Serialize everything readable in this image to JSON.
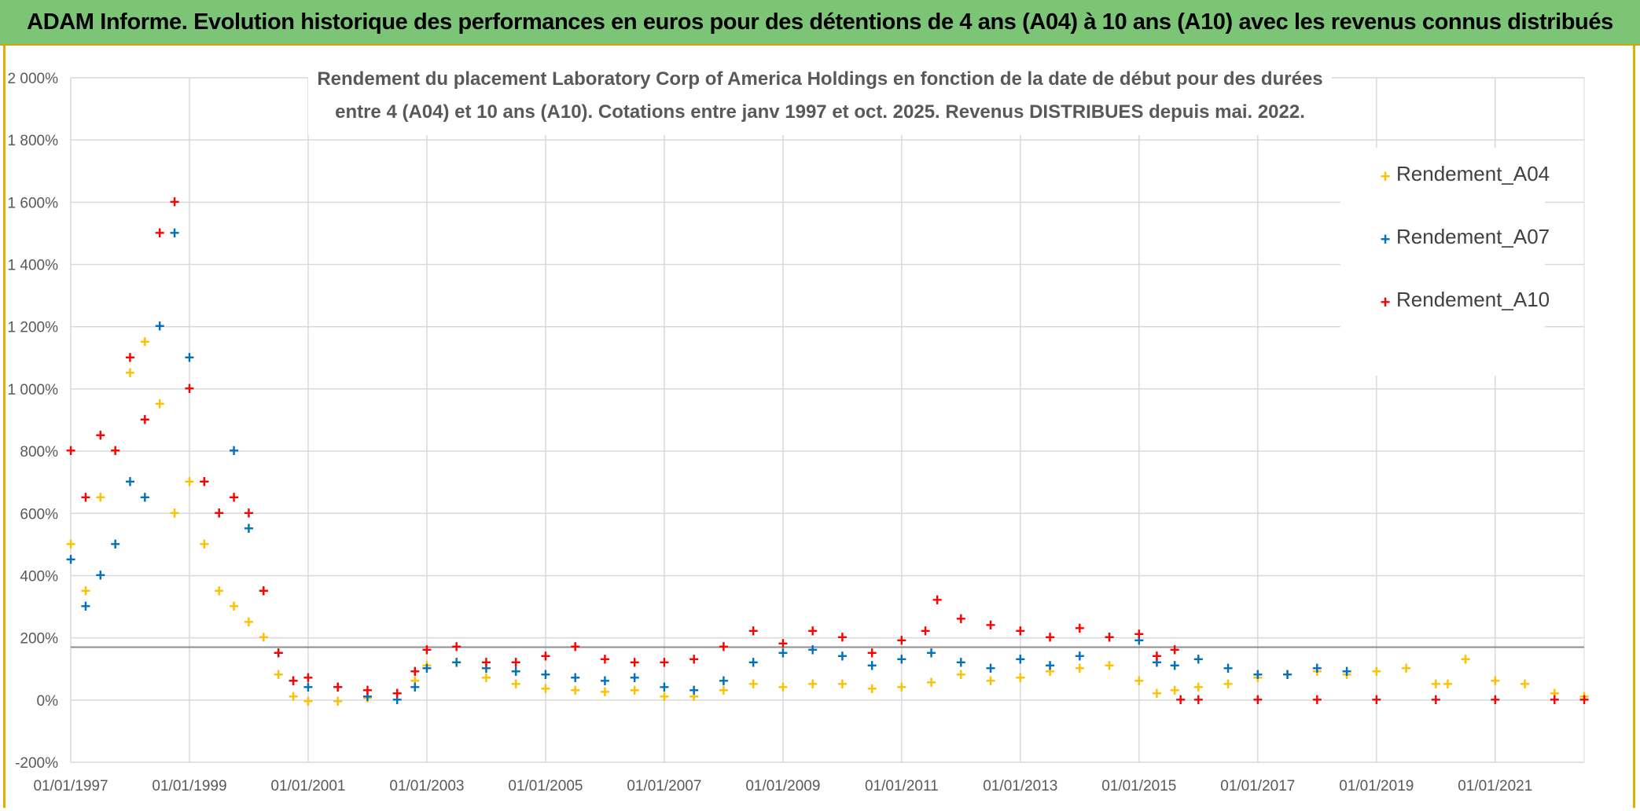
{
  "banner": {
    "title": "ADAM Informe. Evolution historique des performances en euros pour des détentions de 4 ans (A04) à 10 ans (A10) avec les revenus connus distribués"
  },
  "chart_data": {
    "type": "scatter",
    "title_line1": "Rendement du placement Laboratory Corp of America Holdings en fonction de la date de début pour des durées",
    "title_line2": "entre 4 (A04) et 10 ans (A10). Cotations entre janv 1997 et oct. 2025. Revenus DISTRIBUES depuis mai. 2022.",
    "x_range": [
      1997.0,
      2022.5
    ],
    "y_range": [
      -200,
      2000
    ],
    "x_tick_labels": [
      "01/01/1997",
      "01/01/1999",
      "01/01/2001",
      "01/01/2003",
      "01/01/2005",
      "01/01/2007",
      "01/01/2009",
      "01/01/2011",
      "01/01/2013",
      "01/01/2015",
      "01/01/2017",
      "01/01/2019",
      "01/01/2021"
    ],
    "x_tick_values": [
      1997,
      1999,
      2001,
      2003,
      2005,
      2007,
      2009,
      2011,
      2013,
      2015,
      2017,
      2019,
      2021
    ],
    "y_tick_labels": [
      "2 000%",
      "1 800%",
      "1 600%",
      "1 400%",
      "1 200%",
      "1 000%",
      "800%",
      "600%",
      "400%",
      "200%",
      "0%",
      "-200%"
    ],
    "y_tick_values": [
      2000,
      1800,
      1600,
      1400,
      1200,
      1000,
      800,
      600,
      400,
      200,
      0,
      -200
    ],
    "reference_line": 170,
    "legend_position": "top-right",
    "series": [
      {
        "name": "Rendement_A04",
        "color": "#ffc000",
        "x": [
          1997.0,
          1997.25,
          1997.5,
          1997.75,
          1998.0,
          1998.25,
          1998.5,
          1998.75,
          1999.0,
          1999.25,
          1999.5,
          1999.75,
          2000.0,
          2000.25,
          2000.5,
          2000.75,
          2001.0,
          2001.5,
          2002.0,
          2002.5,
          2002.8,
          2003.0,
          2003.5,
          2004.0,
          2004.5,
          2005.0,
          2005.5,
          2006.0,
          2006.5,
          2007.0,
          2007.5,
          2008.0,
          2008.5,
          2009.0,
          2009.5,
          2010.0,
          2010.5,
          2011.0,
          2011.5,
          2012.0,
          2012.5,
          2013.0,
          2013.5,
          2014.0,
          2014.5,
          2015.0,
          2015.3,
          2015.6,
          2016.0,
          2016.5,
          2017.0,
          2017.5,
          2018.0,
          2018.5,
          2019.0,
          2019.5,
          2020.0,
          2020.2,
          2020.5,
          2021.0,
          2021.5,
          2022.0,
          2022.5
        ],
        "y": [
          500,
          350,
          650,
          800,
          1050,
          1150,
          950,
          600,
          700,
          500,
          350,
          300,
          250,
          200,
          80,
          10,
          -5,
          -5,
          5,
          20,
          60,
          110,
          120,
          70,
          50,
          35,
          30,
          25,
          30,
          10,
          10,
          30,
          50,
          40,
          50,
          50,
          35,
          40,
          55,
          80,
          60,
          70,
          90,
          100,
          110,
          60,
          20,
          30,
          40,
          50,
          70,
          80,
          90,
          80,
          90,
          100,
          50,
          50,
          130,
          60,
          50,
          20,
          10
        ]
      },
      {
        "name": "Rendement_A07",
        "color": "#0070c0",
        "x": [
          1997.0,
          1997.25,
          1997.5,
          1997.75,
          1998.0,
          1998.25,
          1998.5,
          1998.75,
          1999.0,
          1999.25,
          1999.5,
          1999.75,
          2000.0,
          2000.25,
          2000.5,
          2000.75,
          2001.0,
          2001.5,
          2002.0,
          2002.5,
          2002.8,
          2003.0,
          2003.5,
          2004.0,
          2004.5,
          2005.0,
          2005.5,
          2006.0,
          2006.5,
          2007.0,
          2007.5,
          2008.0,
          2008.5,
          2009.0,
          2009.5,
          2010.0,
          2010.5,
          2011.0,
          2011.5,
          2012.0,
          2012.5,
          2013.0,
          2013.5,
          2014.0,
          2014.5,
          2015.0,
          2015.3,
          2015.6,
          2016.0,
          2016.5,
          2017.0,
          2017.5,
          2018.0,
          2018.5
        ],
        "y": [
          450,
          300,
          400,
          500,
          700,
          650,
          1200,
          1500,
          1100,
          700,
          600,
          800,
          550,
          350,
          150,
          60,
          40,
          40,
          10,
          0,
          40,
          100,
          120,
          100,
          90,
          80,
          70,
          60,
          70,
          40,
          30,
          60,
          120,
          150,
          160,
          140,
          110,
          130,
          150,
          120,
          100,
          130,
          110,
          140,
          200,
          190,
          120,
          110,
          130,
          100,
          80,
          80,
          100,
          90
        ]
      },
      {
        "name": "Rendement_A10",
        "color": "#ff0000",
        "x": [
          1997.0,
          1997.25,
          1997.5,
          1997.75,
          1998.0,
          1998.25,
          1998.5,
          1998.75,
          1999.0,
          1999.25,
          1999.5,
          1999.75,
          2000.0,
          2000.25,
          2000.5,
          2000.75,
          2001.0,
          2001.5,
          2002.0,
          2002.5,
          2002.8,
          2003.0,
          2003.5,
          2004.0,
          2004.5,
          2005.0,
          2005.5,
          2006.0,
          2006.5,
          2007.0,
          2007.5,
          2008.0,
          2008.5,
          2009.0,
          2009.5,
          2010.0,
          2010.5,
          2011.0,
          2011.4,
          2011.6,
          2012.0,
          2012.5,
          2013.0,
          2013.5,
          2014.0,
          2014.5,
          2015.0,
          2015.3,
          2015.6,
          2015.7,
          2016.0,
          2017.0,
          2018.0,
          2019.0,
          2020.0,
          2021.0,
          2022.0,
          2022.5
        ],
        "y": [
          800,
          650,
          850,
          800,
          1100,
          900,
          1500,
          1600,
          1000,
          700,
          600,
          650,
          600,
          350,
          150,
          60,
          70,
          40,
          30,
          20,
          90,
          160,
          170,
          120,
          120,
          140,
          170,
          130,
          120,
          120,
          130,
          170,
          220,
          180,
          220,
          200,
          150,
          190,
          220,
          320,
          260,
          240,
          220,
          200,
          230,
          200,
          210,
          140,
          160,
          0,
          0,
          0,
          0,
          0,
          0,
          0,
          0,
          0
        ]
      }
    ]
  }
}
